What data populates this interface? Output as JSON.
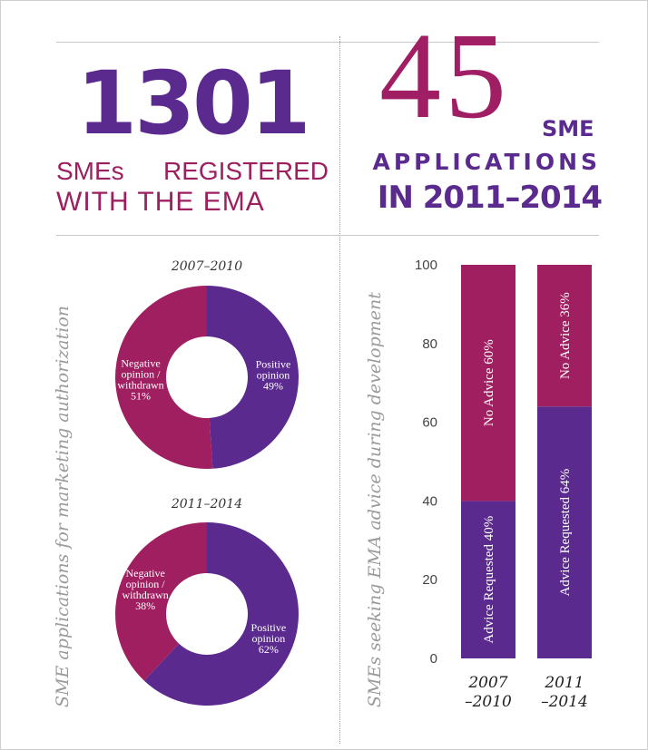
{
  "header": {
    "left": {
      "number": "1301",
      "line1_a": "SMEs",
      "line1_b": "REGISTERED",
      "line2": "WITH THE EMA"
    },
    "right": {
      "number": "45",
      "sme": "SME",
      "line1": "APPLICATIONS",
      "line2": "IN 2011–2014"
    }
  },
  "colors": {
    "purple": "#5b2a8e",
    "magenta": "#a01f60",
    "divider": "#c7c7c7"
  },
  "chart_data": [
    {
      "type": "pie",
      "variant": "donut",
      "title": "SME applications for marketing authorization",
      "charts": [
        {
          "period": "2007–2010",
          "slices": [
            {
              "label": "Positive opinion",
              "label_lines": [
                "Positive",
                "opinion"
              ],
              "value": 49,
              "value_text": "49%",
              "color": "#5b2a8e"
            },
            {
              "label": "Negative opinion / withdrawn",
              "label_lines": [
                "Negative",
                "opinion /",
                "withdrawn"
              ],
              "value": 51,
              "value_text": "51%",
              "color": "#a01f60"
            }
          ]
        },
        {
          "period": "2011–2014",
          "slices": [
            {
              "label": "Positive opinion",
              "label_lines": [
                "Positive",
                "opinion"
              ],
              "value": 62,
              "value_text": "62%",
              "color": "#5b2a8e"
            },
            {
              "label": "Negative opinion / withdrawn",
              "label_lines": [
                "Negative",
                "opinion /",
                "withdrawn"
              ],
              "value": 38,
              "value_text": "38%",
              "color": "#a01f60"
            }
          ]
        }
      ]
    },
    {
      "type": "bar",
      "stacked": true,
      "title": "SMEs seeking EMA advice during development",
      "categories": [
        {
          "lines": [
            "2007",
            "–2010"
          ]
        },
        {
          "lines": [
            "2011",
            "–2014"
          ]
        }
      ],
      "series": [
        {
          "name": "Advice Requested",
          "values": [
            40,
            64
          ],
          "labels": [
            "Advice Requested 40%",
            "Advice Requested 64%"
          ],
          "color": "#5b2a8e"
        },
        {
          "name": "No Advice",
          "values": [
            60,
            36
          ],
          "labels": [
            "No Advice 60%",
            "No Advice 36%"
          ],
          "color": "#a01f60"
        }
      ],
      "ylim": [
        0,
        100
      ],
      "yticks": [
        0,
        20,
        40,
        60,
        80,
        100
      ],
      "grid": false
    }
  ]
}
